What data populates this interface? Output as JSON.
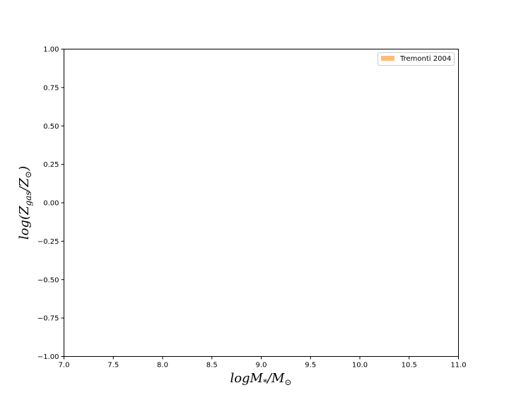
{
  "chart_data": {
    "type": "area",
    "xlim": [
      7.0,
      11.0
    ],
    "ylim": [
      -1.0,
      1.0
    ],
    "x_ticks": [
      7.0,
      7.5,
      8.0,
      8.5,
      9.0,
      9.5,
      10.0,
      10.5,
      11.0
    ],
    "y_ticks": [
      -1.0,
      -0.75,
      -0.5,
      -0.25,
      0.0,
      0.25,
      0.5,
      0.75,
      1.0
    ],
    "x_tick_labels": [
      "7.0",
      "7.5",
      "8.0",
      "8.5",
      "9.0",
      "9.5",
      "10.0",
      "10.5",
      "11.0"
    ],
    "y_tick_labels": [
      "−1.00",
      "−0.75",
      "−0.50",
      "−0.25",
      "0.00",
      "0.25",
      "0.50",
      "0.75",
      "1.00"
    ],
    "xlabel": {
      "main": "logM",
      "sub": "*",
      "rest": "/M",
      "sub2": "⊙"
    },
    "ylabel": {
      "pre": "log(Z",
      "sub": "gas",
      "mid": "/Z",
      "sub2": "⊙",
      "post": ")"
    },
    "series": [
      {
        "name": "Tremonti 2004",
        "color": "#ffbb78",
        "values": []
      }
    ],
    "legend_position": "top-right",
    "grid": false
  }
}
